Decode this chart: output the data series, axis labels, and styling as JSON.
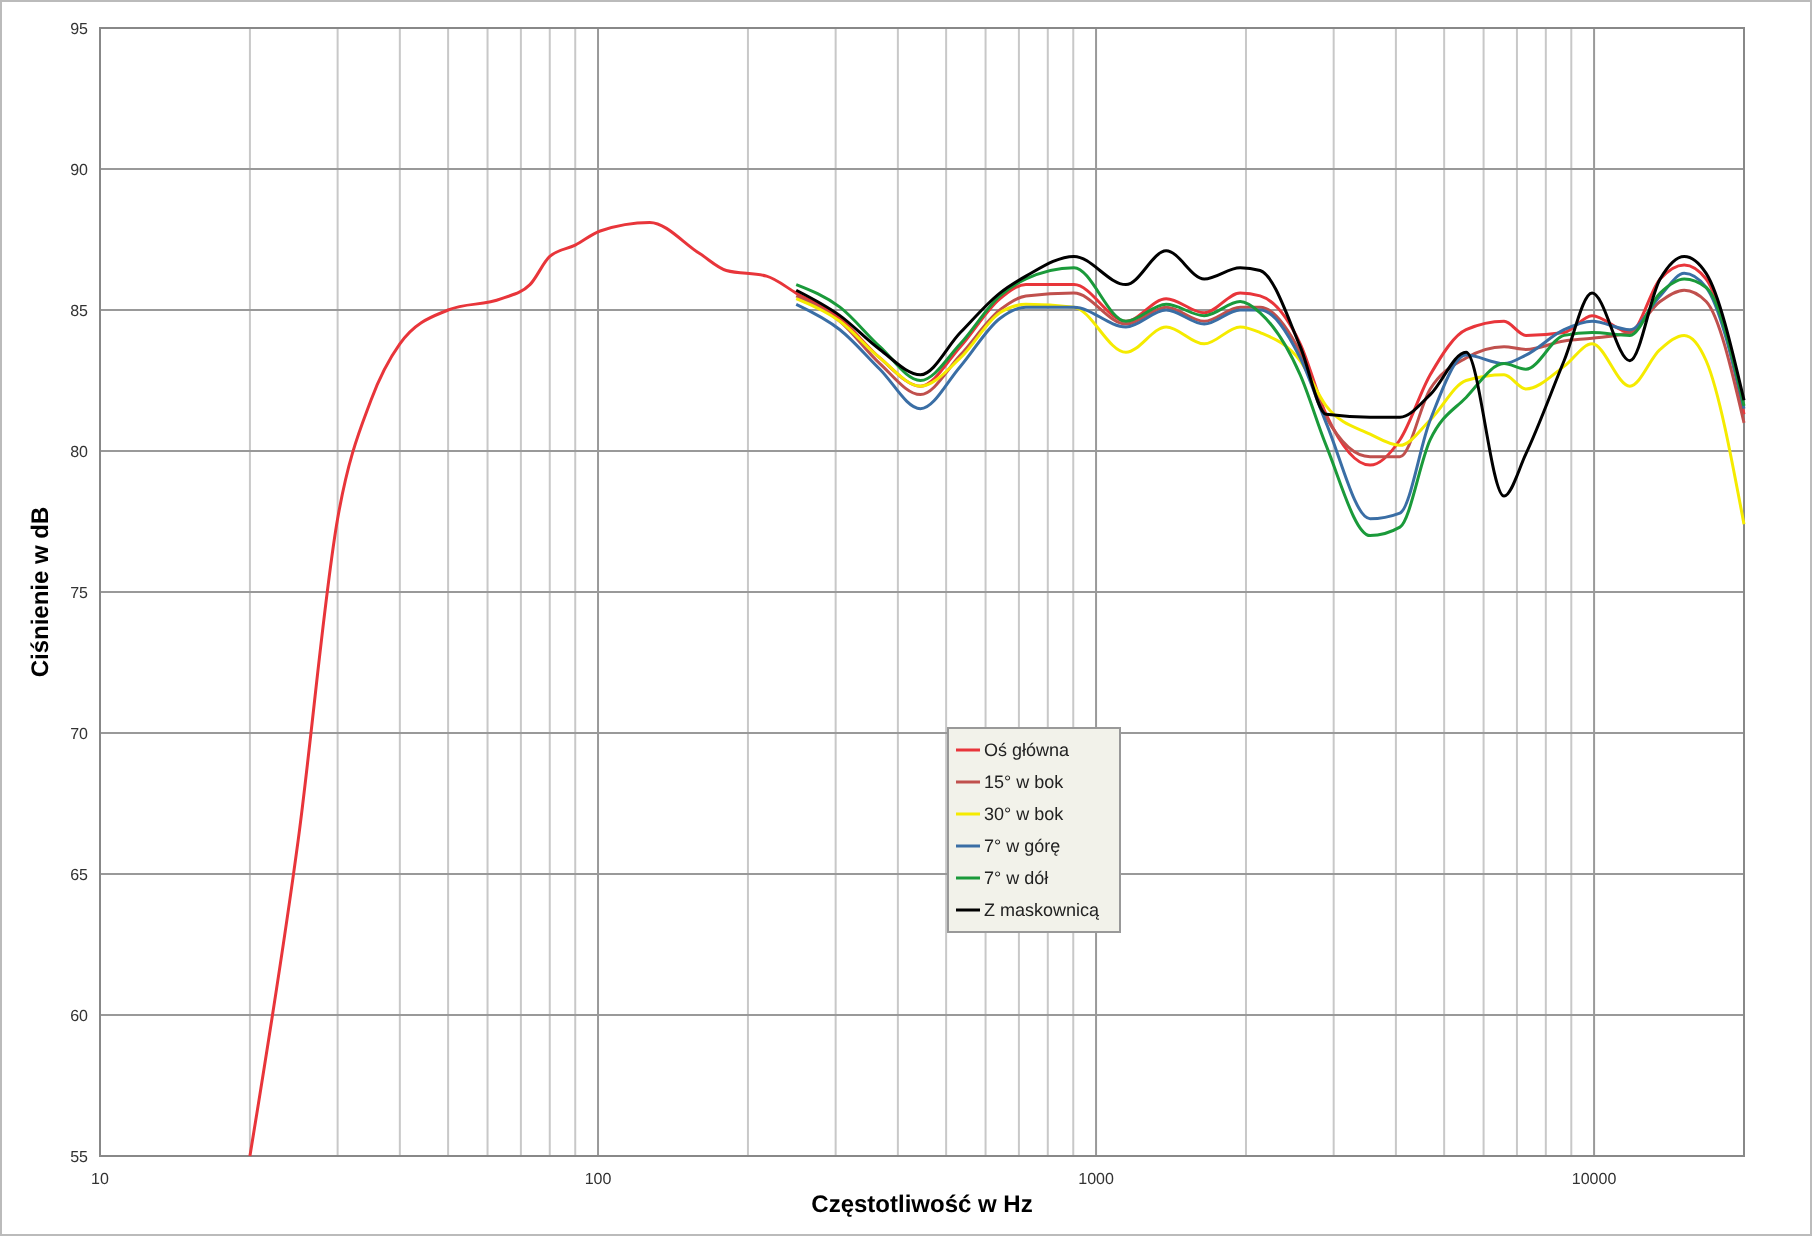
{
  "chart_data": {
    "type": "line",
    "xlabel": "Częstotliwość w Hz",
    "ylabel": "Ciśnienie w dB",
    "log": "x",
    "grid": true,
    "legend": "center",
    "marker": "none",
    "line_style": "solid",
    "xlim": [
      10,
      20000
    ],
    "ylim": [
      55,
      95
    ],
    "xticks": [
      10,
      {
        "value": 20,
        "label": null
      },
      {
        "value": 30,
        "label": null
      },
      {
        "value": 40,
        "label": null
      },
      {
        "value": 50,
        "label": null
      },
      {
        "value": 60,
        "label": null
      },
      {
        "value": 70,
        "label": null
      },
      {
        "value": 80,
        "label": null
      },
      {
        "value": 90,
        "label": null
      },
      100,
      {
        "value": 200,
        "label": null
      },
      {
        "value": 300,
        "label": null
      },
      {
        "value": 400,
        "label": null
      },
      {
        "value": 500,
        "label": null
      },
      {
        "value": 600,
        "label": null
      },
      {
        "value": 700,
        "label": null
      },
      {
        "value": 800,
        "label": null
      },
      {
        "value": 900,
        "label": null
      },
      1000,
      {
        "value": 2000,
        "label": null
      },
      {
        "value": 3000,
        "label": null
      },
      {
        "value": 4000,
        "label": null
      },
      {
        "value": 5000,
        "label": null
      },
      {
        "value": 6000,
        "label": null
      },
      {
        "value": 7000,
        "label": null
      },
      {
        "value": 8000,
        "label": null
      },
      {
        "value": 9000,
        "label": null
      },
      10000,
      {
        "value": 20000,
        "label": null
      }
    ],
    "yticks": [
      55,
      60,
      65,
      70,
      75,
      80,
      85,
      90,
      95
    ],
    "x": [
      250,
      306,
      368,
      444,
      534,
      641,
      723,
      903,
      1148,
      1383,
      1649,
      1947,
      2135,
      2570,
      2897,
      3550,
      4076,
      4688,
      5534,
      6594,
      7296,
      8705,
      9908,
      11800,
      13570,
      15170,
      16790,
      20000
    ],
    "series": [
      {
        "name": "Oś główna",
        "color": "#e8353a",
        "x": [
          20,
          25,
          30,
          35,
          40,
          50,
          64,
          73,
          80,
          90,
          101,
          127,
          160,
          181,
          218,
          250,
          306,
          368,
          444,
          534,
          641,
          723,
          903,
          1148,
          1383,
          1649,
          1947,
          2135,
          2570,
          2897,
          3550,
          4076,
          4688,
          5534,
          6594,
          7296,
          8705,
          9908,
          11800,
          13570,
          15170,
          16790,
          20000
        ],
        "values": [
          55,
          66.2,
          77.6,
          81.8,
          83.8,
          85,
          85.4,
          85.9,
          86.9,
          87.3,
          87.8,
          88.1,
          87,
          86.4,
          86.2,
          85.6,
          84.7,
          83.3,
          82.3,
          83.7,
          85.4,
          85.9,
          85.9,
          84.6,
          85.4,
          84.9,
          85.6,
          85.5,
          83.8,
          81.3,
          79.5,
          80.4,
          82.7,
          84.3,
          84.6,
          84.1,
          84.2,
          84.8,
          84.2,
          86.1,
          86.6,
          86.1,
          81.3
        ]
      },
      {
        "name": "15° w bok",
        "color": "#c0504d",
        "values": [
          85.5,
          84.6,
          83.1,
          82,
          83.4,
          85,
          85.5,
          85.6,
          84.5,
          85.1,
          84.6,
          85.1,
          85.1,
          83.5,
          81.2,
          79.8,
          79.8,
          82.2,
          83.3,
          83.7,
          83.6,
          83.9,
          84,
          84.2,
          85.3,
          85.7,
          85.3,
          81
        ]
      },
      {
        "name": "30° w bok",
        "color": "#f5eb00",
        "values": [
          85.4,
          84.6,
          83.3,
          82.3,
          83.3,
          84.9,
          85.2,
          85.1,
          83.5,
          84.4,
          83.8,
          84.4,
          84.2,
          83.2,
          81.6,
          80.6,
          80.2,
          81.1,
          82.5,
          82.7,
          82.2,
          83,
          83.8,
          82.3,
          83.6,
          84.1,
          83.2,
          77.4
        ]
      },
      {
        "name": "7° w górę",
        "color": "#3a6ea5",
        "values": [
          85.2,
          84.3,
          82.9,
          81.5,
          83,
          84.7,
          85.1,
          85.1,
          84.4,
          85,
          84.5,
          85,
          85,
          83.3,
          81,
          77.6,
          77.8,
          81.1,
          83.4,
          83.1,
          83.4,
          84.3,
          84.6,
          84.3,
          85.5,
          86.3,
          85.8,
          81.5
        ]
      },
      {
        "name": "7° w dół",
        "color": "#1a9a3a",
        "values": [
          85.9,
          85.1,
          83.7,
          82.5,
          83.8,
          85.5,
          86.1,
          86.5,
          84.6,
          85.2,
          84.8,
          85.3,
          84.9,
          82.7,
          80.2,
          77,
          77.3,
          80.4,
          81.9,
          83.1,
          82.9,
          84.1,
          84.2,
          84.1,
          85.6,
          86.1,
          85.8,
          81.6
        ]
      },
      {
        "name": "Z maskownicą",
        "color": "#000000",
        "values": [
          85.7,
          84.8,
          83.6,
          82.7,
          84.2,
          85.6,
          86.2,
          86.9,
          85.9,
          87.1,
          86.1,
          86.5,
          86.4,
          83.7,
          81.3,
          81.2,
          81.2,
          82,
          83.5,
          78.4,
          79.9,
          83.2,
          85.6,
          83.2,
          86.1,
          86.9,
          86.3,
          81.8
        ]
      }
    ]
  }
}
